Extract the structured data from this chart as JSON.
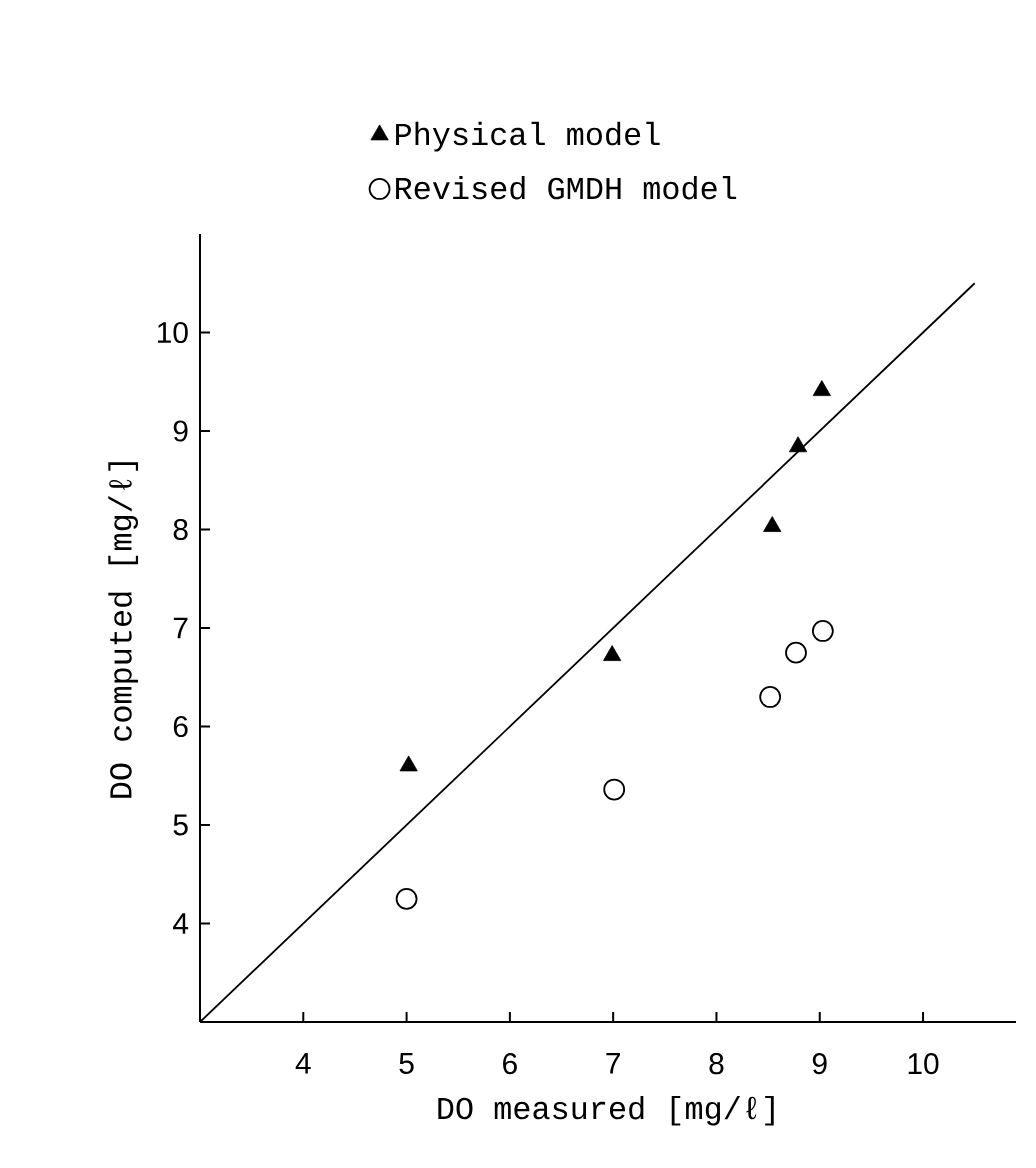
{
  "chart_data": {
    "type": "scatter",
    "xlabel": "DO measured  [mg/ℓ]",
    "ylabel": "DO computed  [mg/ℓ]",
    "xlim": [
      3,
      10.9
    ],
    "ylim": [
      3,
      11
    ],
    "xticks": [
      4,
      5,
      6,
      7,
      8,
      9,
      10
    ],
    "yticks": [
      4,
      5,
      6,
      7,
      8,
      9,
      10
    ],
    "grid": false,
    "legend": "top",
    "series": [
      {
        "name": "Physical model",
        "color": "#000000",
        "marker": "triangle",
        "x": [
          5.02,
          6.99,
          8.54,
          8.79,
          9.02
        ],
        "values": [
          5.6,
          6.72,
          8.03,
          8.84,
          9.41
        ]
      },
      {
        "name": "Revised GMDH model",
        "color": "#000000",
        "marker": "circle",
        "x": [
          5.0,
          7.01,
          8.52,
          8.77,
          9.03
        ],
        "values": [
          4.25,
          5.36,
          6.3,
          6.75,
          6.97
        ]
      },
      {
        "type": "line",
        "color": "#000000",
        "marker": "none",
        "x": [
          3,
          10.5
        ],
        "values": [
          3,
          10.5
        ]
      }
    ]
  }
}
